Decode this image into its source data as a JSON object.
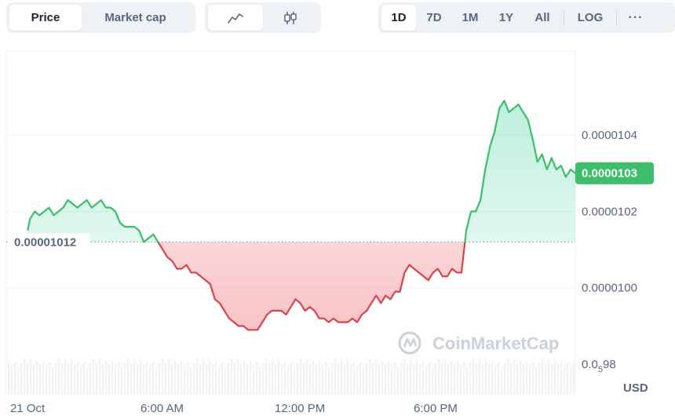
{
  "toolbar": {
    "metric_tabs": [
      {
        "label": "Price",
        "active": true
      },
      {
        "label": "Market cap",
        "active": false
      }
    ],
    "chart_style": [
      {
        "icon": "line-chart-icon",
        "active": true
      },
      {
        "icon": "candlestick-icon",
        "active": false
      }
    ],
    "ranges": [
      {
        "label": "1D",
        "active": true
      },
      {
        "label": "7D",
        "active": false
      },
      {
        "label": "1M",
        "active": false
      },
      {
        "label": "1Y",
        "active": false
      },
      {
        "label": "All",
        "active": false
      }
    ],
    "log_label": "LOG",
    "more_label": "···"
  },
  "watermark": "CoinMarketCap",
  "colors": {
    "up": "#16c784",
    "up_line": "#3cbe6a",
    "down": "#ea3943",
    "down_line": "#d9434a",
    "current_badge": "#3cbe6a",
    "grid": "#eff2f5",
    "axis_text": "#58667e"
  },
  "chart_data": {
    "type": "area",
    "currency_label": "USD",
    "reference_label": "0.00001012",
    "reference_value": 1.012e-05,
    "current_label": "0.0000103",
    "current_value": 1.03e-05,
    "x_ticks": [
      "21 Oct",
      "6:00 AM",
      "12:00 PM",
      "6:00 PM"
    ],
    "y_ticks": [
      {
        "value": 1.04e-05,
        "label": "0.0000104"
      },
      {
        "value": 1.02e-05,
        "label": "0.0000102"
      },
      {
        "value": 1e-05,
        "label": "0.0000100"
      },
      {
        "value": 9.8e-06,
        "label_main": "0.0",
        "label_sub": "5",
        "label_tail": "98"
      }
    ],
    "y_range": [
      9.72e-06,
      1.062e-05
    ],
    "x_range_hours": [
      0,
      24
    ],
    "series": [
      {
        "x_hours": [
          0.9,
          1.0,
          1.2,
          1.4,
          1.6,
          1.8,
          2.0,
          2.2,
          2.4,
          2.6,
          2.8,
          3.0,
          3.2,
          3.4,
          3.6,
          3.8,
          4.0,
          4.2,
          4.4,
          4.6,
          4.8,
          5.0,
          5.2,
          5.4,
          5.6,
          5.8,
          6.0,
          6.2,
          6.4,
          6.6,
          6.8,
          7.0,
          7.2,
          7.4,
          7.6,
          7.8,
          8.0,
          8.2,
          8.4,
          8.6,
          8.8,
          9.0,
          9.2,
          9.4,
          9.6,
          9.8,
          10.0,
          10.2,
          10.4,
          10.6,
          10.8,
          11.0,
          11.2,
          11.4,
          11.6,
          11.8,
          12.0,
          12.2,
          12.4,
          12.6,
          12.8,
          13.0,
          13.2,
          13.4,
          13.6,
          13.8,
          14.0,
          14.2,
          14.4,
          14.6,
          14.8,
          15.0,
          15.2,
          15.4,
          15.6,
          15.8,
          16.0,
          16.2,
          16.4,
          16.6,
          16.8,
          17.0,
          17.2,
          17.4,
          17.6,
          17.8,
          18.0,
          18.2,
          18.4,
          18.6,
          18.8,
          19.0,
          19.2,
          19.4,
          19.6,
          19.8,
          20.0,
          20.2,
          20.4,
          20.6,
          20.8,
          21.0,
          21.2,
          21.4,
          21.6,
          21.8,
          22.0,
          22.2,
          22.4,
          22.6,
          22.8,
          23.0,
          23.2,
          23.4,
          23.6,
          23.8,
          24.0
        ],
        "values": [
          1.015e-05,
          1.018e-05,
          1.02e-05,
          1.019e-05,
          1.02e-05,
          1.021e-05,
          1.019e-05,
          1.02e-05,
          1.021e-05,
          1.023e-05,
          1.022e-05,
          1.021e-05,
          1.022e-05,
          1.023e-05,
          1.021e-05,
          1.022e-05,
          1.023e-05,
          1.021e-05,
          1.021e-05,
          1.02e-05,
          1.017e-05,
          1.016e-05,
          1.016e-05,
          1.016e-05,
          1.015e-05,
          1.012e-05,
          1.013e-05,
          1.014e-05,
          1.012e-05,
          1.01e-05,
          1.008e-05,
          1.007e-05,
          1.005e-05,
          1.005e-05,
          1.006e-05,
          1.004e-05,
          1.004e-05,
          1.003e-05,
          1.002e-05,
          1.001e-05,
          9.97e-06,
          9.96e-06,
          9.94e-06,
          9.92e-06,
          9.91e-06,
          9.9e-06,
          9.9e-06,
          9.89e-06,
          9.89e-06,
          9.89e-06,
          9.91e-06,
          9.93e-06,
          9.94e-06,
          9.94e-06,
          9.94e-06,
          9.93e-06,
          9.95e-06,
          9.97e-06,
          9.96e-06,
          9.94e-06,
          9.95e-06,
          9.94e-06,
          9.92e-06,
          9.92e-06,
          9.91e-06,
          9.92e-06,
          9.91e-06,
          9.91e-06,
          9.91e-06,
          9.92e-06,
          9.91e-06,
          9.93e-06,
          9.94e-06,
          9.96e-06,
          9.98e-06,
          9.96e-06,
          9.98e-06,
          9.97e-06,
          9.99e-06,
          9.99e-06,
          1.004e-05,
          1.006e-05,
          1.005e-05,
          1.004e-05,
          1.003e-05,
          1.002e-05,
          1.004e-05,
          1.005e-05,
          1.003e-05,
          1.003e-05,
          1.005e-05,
          1.004e-05,
          1.004e-05,
          1.015e-05,
          1.02e-05,
          1.02e-05,
          1.023e-05,
          1.031e-05,
          1.037e-05,
          1.041e-05,
          1.047e-05,
          1.049e-05,
          1.046e-05,
          1.047e-05,
          1.048e-05,
          1.046e-05,
          1.044e-05,
          1.039e-05,
          1.033e-05,
          1.035e-05,
          1.031e-05,
          1.034e-05,
          1.031e-05,
          1.032e-05,
          1.029e-05,
          1.031e-05,
          1.03e-05
        ]
      }
    ],
    "grid": true
  }
}
